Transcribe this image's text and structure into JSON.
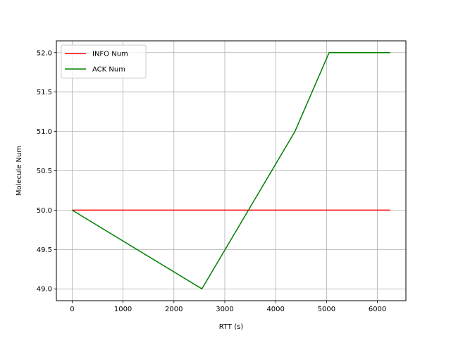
{
  "chart_data": {
    "type": "line",
    "title": "",
    "xlabel": "RTT (s)",
    "ylabel": "Molecule Num",
    "xlim": [
      -310,
      6560
    ],
    "ylim": [
      48.85,
      52.15
    ],
    "xticks": [
      0,
      1000,
      2000,
      3000,
      4000,
      5000,
      6000
    ],
    "xtick_labels": [
      "0",
      "1000",
      "2000",
      "3000",
      "4000",
      "5000",
      "6000"
    ],
    "yticks": [
      49.0,
      49.5,
      50.0,
      50.5,
      51.0,
      51.5,
      52.0
    ],
    "ytick_labels": [
      "49.0",
      "49.5",
      "50.0",
      "50.5",
      "51.0",
      "51.5",
      "52.0"
    ],
    "grid": true,
    "legend_position": "upper left",
    "series": [
      {
        "name": "INFO Num",
        "color": "#ff0000",
        "x": [
          0,
          6250
        ],
        "y": [
          50,
          50
        ]
      },
      {
        "name": "ACK Num",
        "color": "#008000",
        "x": [
          0,
          2550,
          4380,
          5050,
          6250
        ],
        "y": [
          50,
          49,
          51,
          52,
          52
        ]
      }
    ]
  }
}
